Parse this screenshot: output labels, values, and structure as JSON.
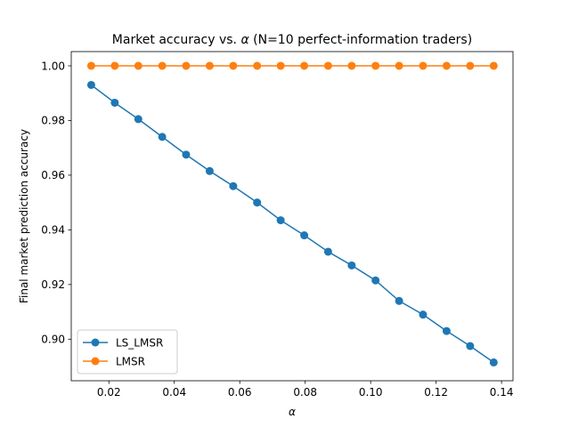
{
  "chart_data": {
    "type": "line",
    "title_prefix": "Market accuracy vs. ",
    "title_symbol": "α",
    "title_suffix": " (N=10 perfect-information traders)",
    "xlabel": "α",
    "ylabel": "Final market prediction accuracy",
    "xlim": [
      0.0085,
      0.1435
    ],
    "ylim": [
      0.8848,
      1.0052
    ],
    "xticks": [
      0.02,
      0.04,
      0.06,
      0.08,
      0.1,
      0.12,
      0.14
    ],
    "xtick_labels": [
      "0.02",
      "0.04",
      "0.06",
      "0.08",
      "0.10",
      "0.12",
      "0.14"
    ],
    "yticks": [
      0.9,
      0.92,
      0.94,
      0.96,
      0.98,
      1.0
    ],
    "ytick_labels": [
      "0.90",
      "0.92",
      "0.94",
      "0.96",
      "0.98",
      "1.00"
    ],
    "x": [
      0.0146,
      0.0218,
      0.029,
      0.0363,
      0.0436,
      0.0508,
      0.058,
      0.0653,
      0.0725,
      0.0797,
      0.087,
      0.0942,
      0.1015,
      0.1087,
      0.116,
      0.1232,
      0.1304,
      0.1376
    ],
    "series": [
      {
        "name": "LS_LMSR",
        "color": "#1f77b4",
        "values": [
          0.993,
          0.9865,
          0.9805,
          0.974,
          0.9675,
          0.9615,
          0.956,
          0.95,
          0.9435,
          0.938,
          0.932,
          0.927,
          0.9215,
          0.914,
          0.909,
          0.903,
          0.8975,
          0.8915
        ]
      },
      {
        "name": "LMSR",
        "color": "#ff7f0e",
        "values": [
          1.0,
          1.0,
          1.0,
          1.0,
          1.0,
          1.0,
          1.0,
          1.0,
          1.0,
          1.0,
          1.0,
          1.0,
          1.0,
          1.0,
          1.0,
          1.0,
          1.0,
          1.0
        ]
      }
    ],
    "legend_position": "lower-left",
    "grid": false
  }
}
